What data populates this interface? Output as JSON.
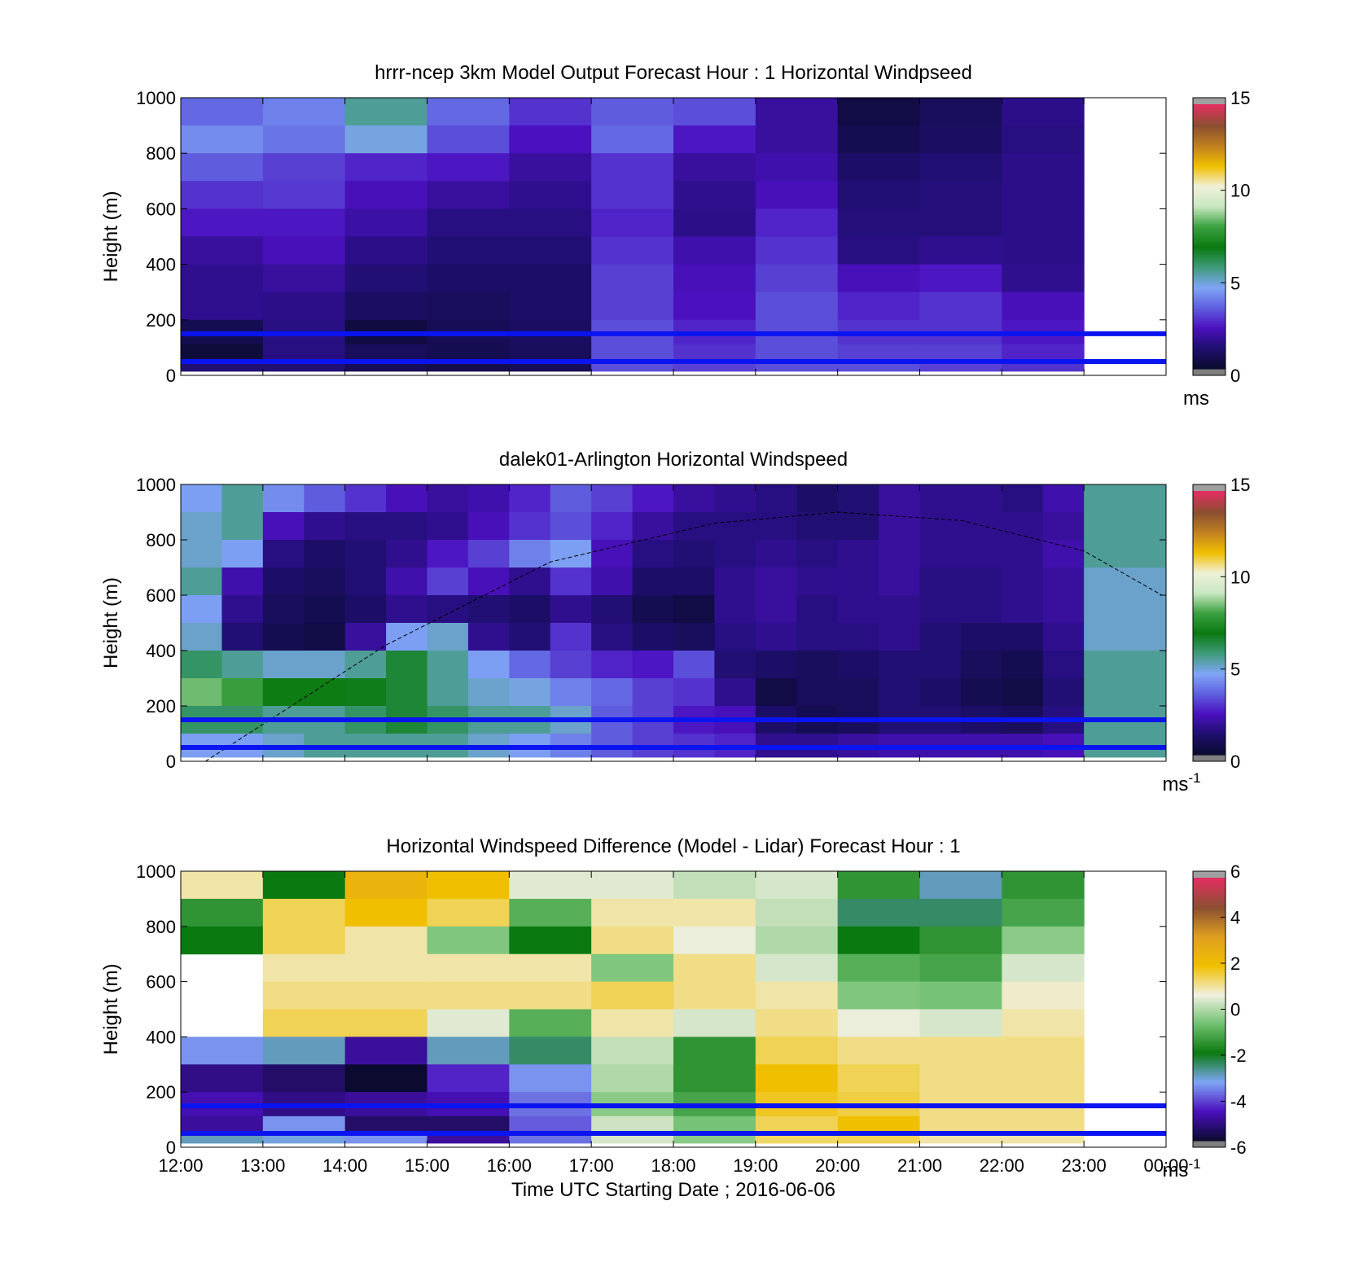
{
  "figure": {
    "xlabel": "Time UTC  Starting Date ; 2016-06-06",
    "xtick_labels": [
      "12:00",
      "13:00",
      "14:00",
      "15:00",
      "16:00",
      "17:00",
      "18:00",
      "19:00",
      "20:00",
      "21:00",
      "22:00",
      "23:00",
      "00:00"
    ]
  },
  "colors": {
    "ws_colormap": [
      "#7f7f7f",
      "#0b0b30",
      "#1f0f70",
      "#4b10c0",
      "#6060e0",
      "#7fa6f5",
      "#3f9a7a",
      "#0a7a10",
      "#3aa040",
      "#c8e8c0",
      "#f0f0d8",
      "#f0c000",
      "#c08020",
      "#8a5030",
      "#e03060",
      "#a0a0a0"
    ],
    "diff_colormap": [
      "#7f7f7f",
      "#0b0b30",
      "#4b10c0",
      "#7fa6f5",
      "#0a7a10",
      "#70c070",
      "#f0f0e0",
      "#f0c000",
      "#e0a020",
      "#8a5030",
      "#e03060",
      "#a0a0a0"
    ],
    "blue_lines": "#0a14f0",
    "dashed_curve": "#000000"
  },
  "chart_data": [
    {
      "type": "heatmap",
      "title": "hrrr-ncep 3km Model Output   Forecast Hour : 1 Horizontal Windpseed",
      "xlabel": "",
      "ylabel": "Height (m)",
      "xlim": [
        "12:00",
        "00:00"
      ],
      "ylim": [
        0,
        1000
      ],
      "yticks": [
        0,
        200,
        400,
        600,
        800,
        1000
      ],
      "colorbar": {
        "min": 0,
        "max": 15,
        "ticks": [
          0,
          5,
          10,
          15
        ],
        "unit": "ms"
      },
      "x_hours": [
        12,
        13,
        14,
        15,
        16,
        17,
        18,
        19,
        20,
        21,
        22
      ],
      "heights_top_to_bottom": [
        950,
        850,
        750,
        650,
        550,
        450,
        350,
        250,
        150,
        75,
        30
      ],
      "values": [
        [
          3.6,
          4.0,
          5.5,
          3.6,
          2.8,
          3.4,
          3.2,
          1.8,
          0.4,
          0.8,
          1.5
        ],
        [
          4.2,
          3.8,
          4.8,
          3.2,
          2.3,
          3.6,
          2.4,
          1.8,
          0.6,
          0.9,
          1.4
        ],
        [
          3.4,
          3.0,
          2.6,
          2.4,
          1.8,
          2.8,
          1.8,
          2.0,
          1.0,
          1.2,
          1.5
        ],
        [
          2.8,
          2.9,
          2.2,
          1.8,
          1.6,
          2.8,
          1.6,
          2.2,
          1.2,
          1.3,
          1.5
        ],
        [
          2.4,
          2.4,
          1.9,
          1.4,
          1.4,
          2.6,
          1.5,
          2.6,
          1.3,
          1.3,
          1.5
        ],
        [
          1.8,
          2.2,
          1.5,
          1.2,
          1.2,
          2.8,
          2.0,
          2.8,
          1.4,
          1.6,
          1.5
        ],
        [
          1.6,
          1.8,
          1.2,
          1.0,
          1.0,
          3.0,
          2.2,
          3.0,
          2.2,
          2.4,
          1.6
        ],
        [
          1.6,
          1.5,
          0.9,
          0.8,
          1.0,
          3.0,
          2.3,
          3.2,
          2.6,
          2.8,
          2.2
        ],
        [
          0.6,
          1.4,
          0.3,
          0.7,
          0.9,
          3.2,
          2.6,
          3.2,
          2.8,
          2.8,
          2.4
        ],
        [
          0.2,
          1.4,
          0.8,
          0.6,
          0.8,
          3.2,
          2.8,
          3.2,
          3.0,
          3.0,
          2.6
        ],
        [
          1.2,
          1.2,
          0.7,
          0.5,
          0.7,
          3.2,
          3.0,
          3.2,
          3.2,
          3.0,
          2.8
        ]
      ],
      "horizontal_lines": [
        150,
        50
      ]
    },
    {
      "type": "heatmap",
      "title": "dalek01-Arlington  Horizontal Windspeed",
      "xlabel": "",
      "ylabel": "Height (m)",
      "xlim": [
        "12:00",
        "00:00"
      ],
      "ylim": [
        0,
        1000
      ],
      "yticks": [
        0,
        200,
        400,
        600,
        800,
        1000
      ],
      "colorbar": {
        "min": 0,
        "max": 15,
        "ticks": [
          0,
          5,
          10,
          15
        ],
        "unit": "ms-1"
      },
      "x_hours": [
        12,
        12.5,
        13,
        13.5,
        14,
        14.5,
        15,
        15.5,
        16,
        16.5,
        17,
        17.5,
        18,
        18.5,
        19,
        19.5,
        20,
        20.5,
        21,
        21.5,
        22,
        22.5,
        23,
        23.5
      ],
      "heights_top_to_bottom": [
        950,
        850,
        750,
        650,
        550,
        450,
        350,
        250,
        150,
        50
      ],
      "values": [
        [
          4.5,
          5.5,
          4.2,
          3.4,
          2.8,
          2.2,
          1.8,
          2.0,
          2.6,
          3.4,
          3.0,
          2.4,
          1.8,
          1.6,
          1.4,
          1.0,
          1.2,
          1.8,
          1.6,
          1.6,
          1.4,
          2.0,
          5.5,
          5.5
        ],
        [
          5.0,
          5.5,
          2.2,
          1.6,
          1.4,
          1.4,
          1.6,
          2.2,
          2.8,
          3.2,
          2.6,
          1.8,
          1.4,
          1.4,
          1.4,
          1.2,
          1.2,
          1.8,
          1.6,
          1.6,
          1.6,
          1.8,
          5.5,
          5.5
        ],
        [
          5.0,
          4.5,
          1.4,
          1.0,
          1.2,
          1.6,
          2.4,
          3.0,
          4.0,
          4.5,
          2.2,
          1.4,
          1.2,
          1.4,
          1.6,
          1.4,
          1.6,
          1.8,
          1.6,
          1.6,
          1.6,
          2.0,
          5.5,
          5.5
        ],
        [
          5.5,
          2.0,
          1.0,
          0.8,
          1.2,
          2.0,
          3.0,
          2.2,
          1.6,
          2.8,
          2.0,
          1.0,
          1.0,
          1.6,
          1.8,
          1.6,
          1.6,
          1.8,
          1.4,
          1.4,
          1.6,
          1.8,
          5.0,
          5.0
        ],
        [
          4.5,
          1.6,
          0.8,
          0.6,
          1.0,
          1.6,
          1.4,
          1.2,
          1.0,
          1.6,
          1.2,
          0.6,
          0.4,
          1.6,
          1.8,
          1.4,
          1.6,
          1.6,
          1.4,
          1.4,
          1.6,
          1.8,
          5.0,
          5.0
        ],
        [
          5.0,
          1.2,
          0.6,
          0.4,
          1.8,
          4.5,
          5.0,
          1.6,
          1.2,
          2.8,
          1.4,
          1.0,
          0.8,
          1.4,
          1.6,
          1.4,
          1.4,
          1.6,
          1.2,
          1.0,
          1.0,
          1.6,
          5.0,
          5.0
        ],
        [
          6.0,
          5.5,
          5.0,
          5.0,
          5.5,
          6.5,
          5.5,
          4.5,
          3.6,
          3.0,
          2.6,
          2.4,
          3.2,
          1.2,
          1.0,
          0.8,
          1.0,
          1.2,
          1.2,
          0.8,
          0.6,
          1.4,
          5.5,
          5.5
        ],
        [
          8.5,
          8.0,
          7.0,
          7.0,
          6.8,
          6.5,
          5.5,
          5.0,
          4.8,
          4.0,
          3.6,
          3.0,
          2.8,
          1.6,
          0.4,
          0.8,
          0.8,
          1.2,
          1.0,
          0.6,
          0.4,
          1.2,
          5.5,
          5.5
        ],
        [
          6.0,
          6.0,
          5.5,
          5.5,
          6.0,
          6.5,
          6.0,
          5.5,
          5.5,
          5.0,
          3.4,
          3.0,
          2.4,
          2.2,
          1.0,
          0.6,
          0.8,
          1.2,
          1.2,
          1.0,
          0.8,
          1.4,
          5.5,
          5.5
        ],
        [
          4.5,
          4.5,
          5.0,
          5.5,
          5.5,
          5.5,
          5.5,
          5.0,
          4.5,
          4.0,
          3.4,
          3.0,
          2.8,
          2.6,
          1.6,
          1.6,
          1.8,
          2.0,
          2.0,
          2.0,
          2.0,
          2.2,
          5.5,
          5.5
        ]
      ],
      "horizontal_lines": [
        150,
        50
      ],
      "dashed_curve": {
        "x": [
          12.3,
          14.5,
          16.5,
          18.5,
          20.0,
          21.5,
          23.0,
          23.95
        ],
        "y": [
          0,
          420,
          720,
          860,
          900,
          870,
          760,
          600
        ]
      }
    },
    {
      "type": "heatmap",
      "title": "Horizontal Windspeed Difference (Model - Lidar) Forecast Hour : 1",
      "xlabel": "Time UTC  Starting Date ; 2016-06-06",
      "ylabel": "Height (m)",
      "xlim": [
        "12:00",
        "00:00"
      ],
      "ylim": [
        0,
        1000
      ],
      "yticks": [
        0,
        200,
        400,
        600,
        800,
        1000
      ],
      "colorbar": {
        "min": -6,
        "max": 6,
        "ticks": [
          -6,
          -4,
          -2,
          0,
          2,
          4,
          6
        ],
        "unit": "ms-1"
      },
      "x_hours": [
        12,
        13,
        14,
        15,
        16,
        17,
        18,
        19,
        20,
        21,
        22
      ],
      "heights_top_to_bottom": [
        950,
        850,
        750,
        650,
        550,
        450,
        350,
        250,
        150,
        75,
        30
      ],
      "values": [
        [
          1.0,
          -2.0,
          2.5,
          2.0,
          0.5,
          0.5,
          0.2,
          0.4,
          -1.5,
          -3.0,
          -1.5
        ],
        [
          -1.5,
          1.5,
          2.0,
          1.5,
          -1.0,
          1.0,
          1.0,
          0.2,
          -2.5,
          -2.5,
          -1.2
        ],
        [
          -2.0,
          1.5,
          1.0,
          -0.5,
          -2.0,
          1.2,
          0.6,
          0.0,
          -2.0,
          -1.5,
          -0.4
        ],
        [
          null,
          1.0,
          1.0,
          1.0,
          1.0,
          -0.5,
          1.2,
          0.4,
          -1.0,
          -1.2,
          0.4
        ],
        [
          null,
          1.2,
          1.2,
          1.2,
          1.2,
          1.5,
          1.2,
          1.0,
          -0.5,
          -0.6,
          0.8
        ],
        [
          null,
          1.5,
          1.5,
          0.5,
          -1.0,
          1.0,
          0.4,
          1.2,
          0.6,
          0.4,
          1.0
        ],
        [
          -3.5,
          -3.0,
          -5.0,
          -3.0,
          -2.5,
          0.2,
          -1.5,
          1.5,
          1.2,
          1.2,
          1.2
        ],
        [
          -5.2,
          -5.5,
          -6.0,
          -4.5,
          -3.5,
          0.0,
          -1.5,
          2.0,
          1.5,
          1.2,
          1.2
        ],
        [
          -4.8,
          -5.2,
          -5.0,
          -4.8,
          -3.8,
          -0.4,
          -1.2,
          1.8,
          1.6,
          1.2,
          1.2
        ],
        [
          -5.0,
          -3.5,
          -5.5,
          -5.5,
          -4.0,
          0.3,
          -0.6,
          1.5,
          2.0,
          1.2,
          1.2
        ],
        [
          -3.0,
          -3.2,
          -3.5,
          -5.0,
          -3.8,
          0.4,
          -0.4,
          1.4,
          1.5,
          1.0,
          1.0
        ]
      ],
      "horizontal_lines": [
        150,
        50
      ]
    }
  ]
}
